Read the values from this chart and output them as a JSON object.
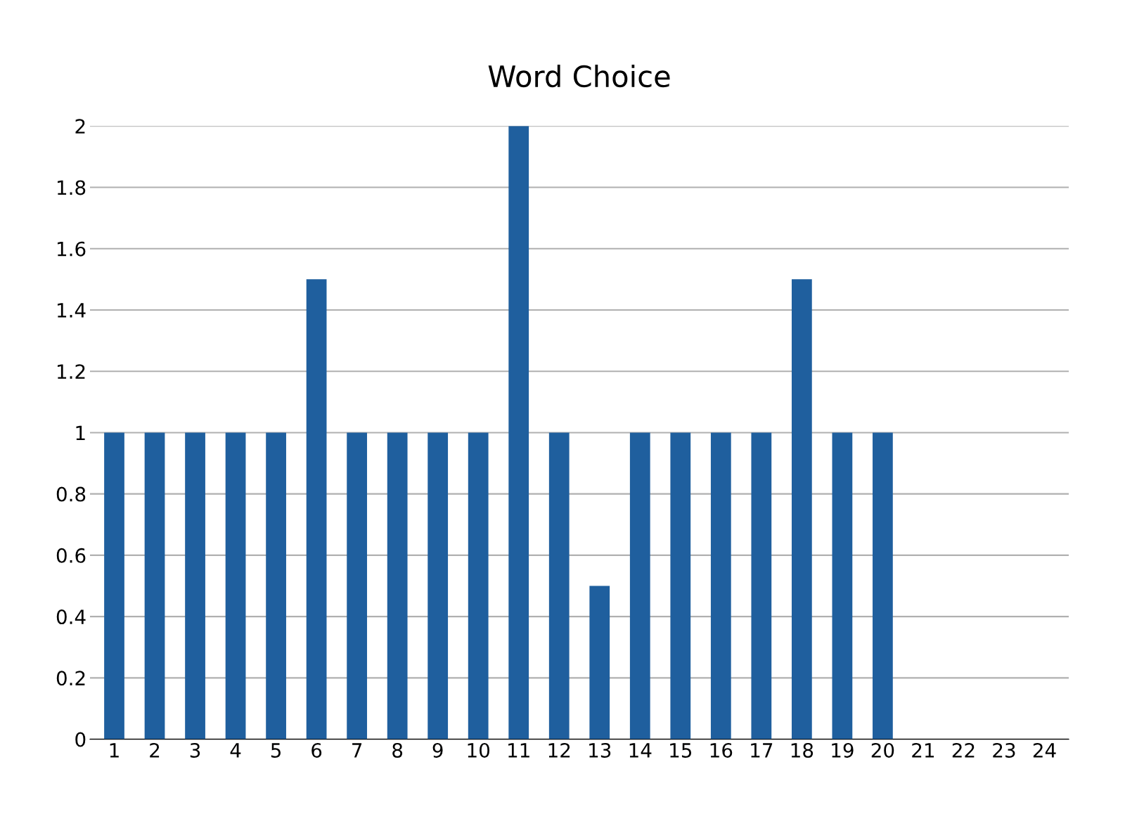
{
  "chart_data": {
    "type": "bar",
    "title": "Word Choice",
    "categories": [
      "1",
      "2",
      "3",
      "4",
      "5",
      "6",
      "7",
      "8",
      "9",
      "10",
      "11",
      "12",
      "13",
      "14",
      "15",
      "16",
      "17",
      "18",
      "19",
      "20",
      "21",
      "22",
      "23",
      "24"
    ],
    "values": [
      1,
      1,
      1,
      1,
      1,
      1.5,
      1,
      1,
      1,
      1,
      2,
      1,
      0.5,
      1,
      1,
      1,
      1,
      1.5,
      1,
      1,
      null,
      null,
      null,
      null
    ],
    "color": "#1f5f9e",
    "ylim": [
      0,
      2
    ],
    "yticks": [
      0,
      0.2,
      0.4,
      0.6,
      0.8,
      1,
      1.2,
      1.4,
      1.6,
      1.8,
      2
    ],
    "grid": "y"
  }
}
